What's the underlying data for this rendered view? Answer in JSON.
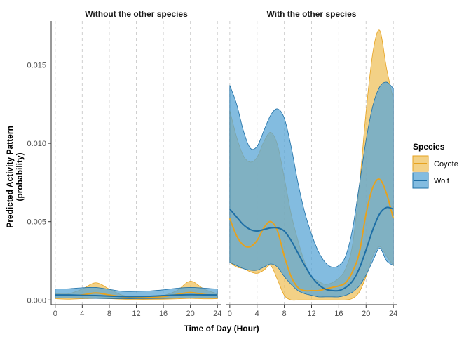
{
  "chart_data": {
    "type": "area",
    "xlabel": "Time of Day (Hour)",
    "ylabel_line1": "Predicted Activity Pattern",
    "ylabel_line2": "(probability)",
    "x_ticks": [
      0,
      4,
      8,
      12,
      16,
      20,
      24
    ],
    "x_tick_labels": [
      "0",
      "4",
      "8",
      "12",
      "16",
      "20",
      "24"
    ],
    "y_ticks": [
      0.0,
      0.005,
      0.01,
      0.015
    ],
    "y_tick_labels": [
      "0.000",
      "0.005",
      "0.010",
      "0.015"
    ],
    "xlim": [
      -0.6,
      24.6
    ],
    "ylim": [
      -0.0003,
      0.0178
    ],
    "grid": "vertical dashed at x ticks",
    "legend": {
      "title": "Species",
      "placement": "right",
      "entries": [
        {
          "name": "Coyote",
          "line_color": "#e6a21f",
          "fill_color": "#efc25e"
        },
        {
          "name": "Wolf",
          "line_color": "#1e6fa6",
          "fill_color": "#5aa5d6"
        }
      ]
    },
    "panels": [
      {
        "strip": "Without the other species",
        "series": [
          {
            "name": "Coyote",
            "x": [
              0,
              2,
              4,
              6,
              8,
              10,
              12,
              14,
              16,
              18,
              20,
              22,
              24
            ],
            "mean": [
              0.0003,
              0.00028,
              0.00032,
              0.00045,
              0.00032,
              0.0002,
              0.00018,
              0.00018,
              0.00022,
              0.00035,
              0.00048,
              0.00035,
              0.0003
            ],
            "lower": [
              8e-05,
              5e-05,
              8e-05,
              0.0001,
              8e-05,
              5e-05,
              4e-05,
              4e-05,
              5e-05,
              7e-05,
              0.0001,
              7e-05,
              8e-05
            ],
            "upper": [
              0.0004,
              0.0004,
              0.0007,
              0.0011,
              0.0007,
              0.0003,
              0.00025,
              0.00025,
              0.0003,
              0.0006,
              0.0012,
              0.0007,
              0.0004
            ]
          },
          {
            "name": "Wolf",
            "x": [
              0,
              2,
              4,
              6,
              8,
              10,
              12,
              14,
              16,
              18,
              20,
              22,
              24
            ],
            "mean": [
              0.00032,
              0.00032,
              0.0003,
              0.00028,
              0.00025,
              0.00022,
              0.00022,
              0.00024,
              0.00028,
              0.00032,
              0.00034,
              0.00033,
              0.00032
            ],
            "lower": [
              0.00012,
              0.00012,
              0.00011,
              0.0001,
              9e-05,
              8e-05,
              8e-05,
              9e-05,
              0.0001,
              0.00012,
              0.00013,
              0.00012,
              0.00012
            ],
            "upper": [
              0.0007,
              0.00072,
              0.00078,
              0.0008,
              0.00068,
              0.00055,
              0.00055,
              0.00058,
              0.00065,
              0.00075,
              0.0008,
              0.00076,
              0.0007
            ]
          }
        ]
      },
      {
        "strip": "With the other species",
        "series": [
          {
            "name": "Coyote",
            "x": [
              0,
              1,
              2,
              3,
              4,
              5,
              6,
              7,
              8,
              9,
              10,
              11,
              12,
              13,
              14,
              15,
              16,
              17,
              18,
              19,
              20,
              21,
              22,
              23,
              24
            ],
            "mean": [
              0.0052,
              0.0041,
              0.0035,
              0.0034,
              0.0038,
              0.0046,
              0.005,
              0.0044,
              0.0028,
              0.0015,
              0.0008,
              0.0006,
              0.0006,
              0.0006,
              0.0007,
              0.0008,
              0.0009,
              0.0011,
              0.0018,
              0.003,
              0.0055,
              0.0072,
              0.0077,
              0.0068,
              0.0052
            ],
            "lower": [
              0.0024,
              0.0021,
              0.002,
              0.0018,
              0.0017,
              0.0019,
              0.0022,
              0.0013,
              0.0003,
              0.0,
              0.0,
              0.0,
              0.0,
              0.0,
              0.0,
              0.0,
              0.0,
              0.0,
              0.0001,
              0.0005,
              0.0015,
              0.0028,
              0.0034,
              0.0028,
              0.0022
            ],
            "upper": [
              0.0121,
              0.0104,
              0.0092,
              0.0088,
              0.0091,
              0.0101,
              0.0107,
              0.0099,
              0.0078,
              0.0055,
              0.0038,
              0.0024,
              0.0015,
              0.0012,
              0.001,
              0.0011,
              0.0014,
              0.002,
              0.0035,
              0.0072,
              0.012,
              0.0158,
              0.0172,
              0.0148,
              0.0128
            ]
          },
          {
            "name": "Wolf",
            "x": [
              0,
              1,
              2,
              3,
              4,
              5,
              6,
              7,
              8,
              9,
              10,
              11,
              12,
              13,
              14,
              15,
              16,
              17,
              18,
              19,
              20,
              21,
              22,
              23,
              24
            ],
            "mean": [
              0.0058,
              0.0053,
              0.0048,
              0.0045,
              0.0044,
              0.0045,
              0.0046,
              0.0046,
              0.0044,
              0.0038,
              0.003,
              0.0022,
              0.0015,
              0.001,
              0.0007,
              0.0006,
              0.0006,
              0.0008,
              0.0012,
              0.002,
              0.0032,
              0.0045,
              0.0055,
              0.0059,
              0.0058
            ],
            "lower": [
              0.0024,
              0.0022,
              0.002,
              0.0019,
              0.0019,
              0.0021,
              0.0023,
              0.0021,
              0.0015,
              0.001,
              0.0006,
              0.0004,
              0.0003,
              0.0002,
              0.0002,
              0.0002,
              0.0002,
              0.0003,
              0.0005,
              0.0009,
              0.0016,
              0.0025,
              0.0033,
              0.0025,
              0.0022
            ],
            "upper": [
              0.0137,
              0.0125,
              0.0108,
              0.0097,
              0.0098,
              0.0108,
              0.0118,
              0.0122,
              0.0116,
              0.0098,
              0.0075,
              0.0056,
              0.0042,
              0.0031,
              0.0024,
              0.0021,
              0.0022,
              0.0028,
              0.0045,
              0.0073,
              0.0102,
              0.0124,
              0.0136,
              0.0139,
              0.0135
            ]
          }
        ]
      }
    ]
  }
}
